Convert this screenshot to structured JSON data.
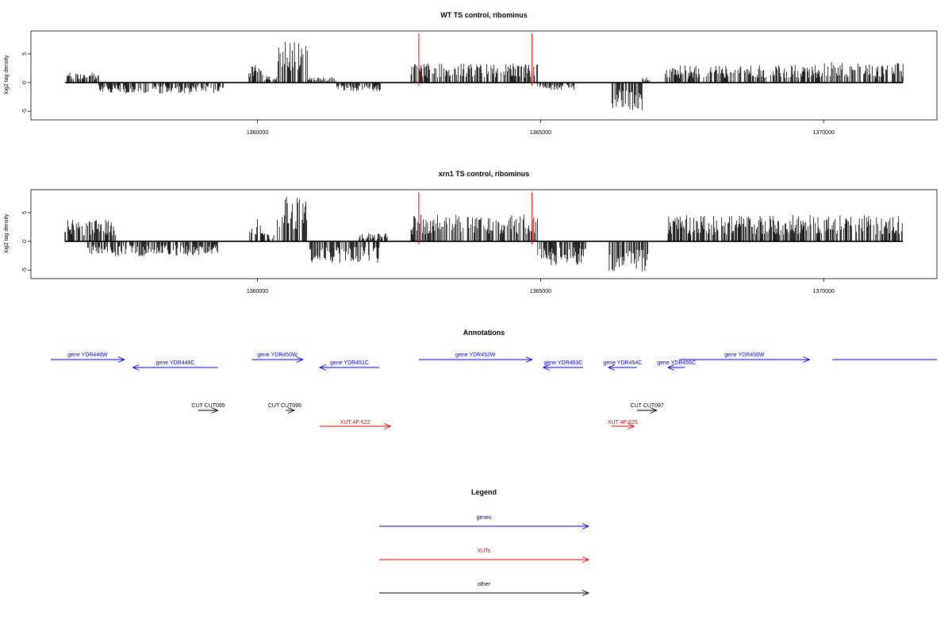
{
  "chart_data": [
    {
      "type": "bar",
      "title": "WT TS control, ribominus",
      "ylabel": "log2 tag density",
      "xlabel": "",
      "xlim": [
        1356000,
        1372000
      ],
      "ylim": [
        -6.5,
        9
      ],
      "yticks": [
        -5,
        0,
        5
      ],
      "xticks": [
        1360000,
        1365000,
        1370000
      ],
      "markers": [
        1362850,
        1364850
      ],
      "regions": [
        {
          "from": 1356600,
          "to": 1357200,
          "level": 1.5,
          "sign": 1
        },
        {
          "from": 1357200,
          "to": 1359500,
          "level": 1.6,
          "sign": -1
        },
        {
          "from": 1359850,
          "to": 1360100,
          "level": 3.2,
          "sign": 1
        },
        {
          "from": 1360100,
          "to": 1360350,
          "level": 1.0,
          "sign": 1
        },
        {
          "from": 1360350,
          "to": 1360900,
          "level": 6.0,
          "sign": 1
        },
        {
          "from": 1360900,
          "to": 1361400,
          "level": 0.8,
          "sign": 1
        },
        {
          "from": 1361400,
          "to": 1362200,
          "level": 1.3,
          "sign": -1
        },
        {
          "from": 1362700,
          "to": 1364950,
          "level": 2.8,
          "sign": 1
        },
        {
          "from": 1364950,
          "to": 1365600,
          "level": 1.1,
          "sign": -1
        },
        {
          "from": 1366250,
          "to": 1366800,
          "level": 4.0,
          "sign": -1
        },
        {
          "from": 1366800,
          "to": 1367000,
          "level": 0.8,
          "sign": 1
        },
        {
          "from": 1367200,
          "to": 1368700,
          "level": 2.5,
          "sign": 1
        },
        {
          "from": 1368700,
          "to": 1370000,
          "level": 2.6,
          "sign": 1
        },
        {
          "from": 1370000,
          "to": 1371400,
          "level": 3.0,
          "sign": 1
        }
      ]
    },
    {
      "type": "bar",
      "title": "xrn1 TS control, ribominus",
      "ylabel": "log2 tag density",
      "xlabel": "",
      "xlim": [
        1356000,
        1372000
      ],
      "ylim": [
        -6.5,
        9
      ],
      "yticks": [
        -5,
        0,
        5
      ],
      "xticks": [
        1360000,
        1365000,
        1370000
      ],
      "markers": [
        1362850,
        1364850
      ],
      "regions": [
        {
          "from": 1356600,
          "to": 1357500,
          "level": 3.2,
          "sign": 1
        },
        {
          "from": 1357000,
          "to": 1359300,
          "level": 2.2,
          "sign": -1
        },
        {
          "from": 1359850,
          "to": 1360100,
          "level": 3.5,
          "sign": 1
        },
        {
          "from": 1360100,
          "to": 1360350,
          "level": 1.2,
          "sign": 1
        },
        {
          "from": 1360350,
          "to": 1360900,
          "level": 6.5,
          "sign": 1
        },
        {
          "from": 1360900,
          "to": 1362200,
          "level": 3.2,
          "sign": -1
        },
        {
          "from": 1361800,
          "to": 1362300,
          "level": 1.2,
          "sign": 1
        },
        {
          "from": 1362700,
          "to": 1364950,
          "level": 4.0,
          "sign": 1
        },
        {
          "from": 1364950,
          "to": 1365800,
          "level": 3.5,
          "sign": -1
        },
        {
          "from": 1366200,
          "to": 1366900,
          "level": 4.5,
          "sign": -1
        },
        {
          "from": 1367200,
          "to": 1371400,
          "level": 3.8,
          "sign": 1
        }
      ]
    }
  ],
  "annotations": {
    "title": "Annotations",
    "genes": [
      {
        "label": "gene YDR448W",
        "start": 1356350,
        "end": 1357650,
        "dir": "right"
      },
      {
        "label": "gene YDR449C",
        "start": 1357800,
        "end": 1359300,
        "dir": "left"
      },
      {
        "label": "gene YDR450W",
        "start": 1359900,
        "end": 1360800,
        "dir": "right"
      },
      {
        "label": "gene YDR451C",
        "start": 1361100,
        "end": 1362150,
        "dir": "left"
      },
      {
        "label": "gene YDR452W",
        "start": 1362850,
        "end": 1364850,
        "dir": "right"
      },
      {
        "label": "gene YDR453C",
        "start": 1365050,
        "end": 1365750,
        "dir": "left"
      },
      {
        "label": "gene YDR454C",
        "start": 1366200,
        "end": 1366700,
        "dir": "left"
      },
      {
        "label": "gene YDR455C",
        "start": 1367250,
        "end": 1367550,
        "dir": "left"
      },
      {
        "label": "gene YDR456W",
        "start": 1367450,
        "end": 1369750,
        "dir": "right"
      },
      {
        "label": "",
        "start": 1370150,
        "end": 1372000,
        "dir": "none"
      }
    ],
    "cuts": [
      {
        "label": "CUT CUT095",
        "start": 1358950,
        "end": 1359300,
        "dir": "right"
      },
      {
        "label": "CUT CUT096",
        "start": 1360500,
        "end": 1360650,
        "dir": "right"
      },
      {
        "label": "CUT CUT097",
        "start": 1366700,
        "end": 1367050,
        "dir": "right"
      }
    ],
    "xuts": [
      {
        "label": "XUT 4F-622",
        "start": 1361100,
        "end": 1362350,
        "dir": "right"
      },
      {
        "label": "XUT 4F-626",
        "start": 1366250,
        "end": 1366650,
        "dir": "right"
      }
    ]
  },
  "legend": {
    "title": "Legend",
    "items": [
      {
        "label": "genes",
        "color": "#0000cc"
      },
      {
        "label": "XUTs",
        "color": "#e60000"
      },
      {
        "label": "other",
        "color": "#000000"
      }
    ]
  },
  "colors": {
    "gene": "#0000cc",
    "xut": "#e60000",
    "other": "#000000",
    "marker": "#e60000"
  }
}
